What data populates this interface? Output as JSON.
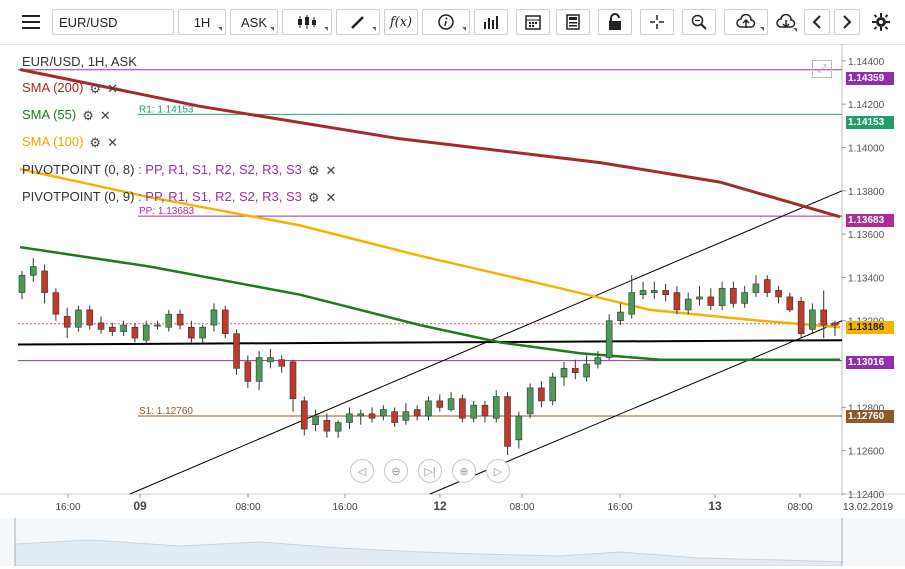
{
  "toolbar": {
    "symbol": "EUR/USD",
    "timeframe": "1H",
    "price_side": "ASK",
    "icons": [
      "menu-icon",
      "candlestick-chart-icon",
      "drawing-pencil-icon",
      "function-icon",
      "info-icon",
      "bar-chart-icon",
      "calendar-icon",
      "calculator-icon",
      "lock-icon",
      "crosshair-icon",
      "zoom-icon",
      "cloud-upload-icon",
      "cloud-download-icon",
      "chevron-left-icon",
      "chevron-right-icon",
      "gear-icon"
    ]
  },
  "legend": {
    "title": "EUR/USD, 1H, ASK",
    "sma200": "SMA (200)",
    "sma55": "SMA (55)",
    "sma100": "SMA (100)",
    "pivot1_name": "PIVOTPOINT (0, 8)",
    "pivot2_name": "PIVOTPOINT (0, 9)",
    "pivot_levels": [
      ": PP",
      "R1",
      "R2",
      "S2",
      "R3",
      "S3"
    ],
    "pivot_levels_full": ": PP, R1, S1, R2, S2, R3, S3",
    "colors": {
      "sma200": "#a52a2a",
      "sma55": "#1e7b1e",
      "sma100": "#f5b301",
      "pivot_pp": "#a0309a"
    }
  },
  "level_labels": {
    "r1": "R1: 1.14153",
    "pp": "PP: 1.13683",
    "s1": "S1: 1.12760"
  },
  "price_tags": {
    "top": "1.14359",
    "r1": "1.14153",
    "pp": "1.13683",
    "current": "1.13186",
    "sma55": "1.13016",
    "s1": "1.12760"
  },
  "chart_data": {
    "type": "candlestick",
    "symbol": "EUR/USD",
    "interval": "1H",
    "y_ticks": [
      "1.14400",
      "1.14200",
      "1.14000",
      "1.13800",
      "1.13600",
      "1.13400",
      "1.13200",
      "1.12800",
      "1.12600",
      "1.12400"
    ],
    "ylim": [
      1.124,
      1.1445
    ],
    "x_labels": [
      "16:00",
      "09",
      "08:00",
      "16:00",
      "12",
      "08:00",
      "16:00",
      "13",
      "08:00",
      "13.02.2019"
    ],
    "horizontal_levels": [
      {
        "name": "R1",
        "value": 1.14153,
        "color": "#2aa07a"
      },
      {
        "name": "PP",
        "value": 1.13683,
        "color": "#a0309a"
      },
      {
        "name": "S1",
        "value": 1.1276,
        "color": "#8b5a2b"
      },
      {
        "name": "top",
        "value": 1.14359,
        "color": "#a0309a"
      },
      {
        "name": "lower",
        "value": 1.13016,
        "color": "#a0309a"
      }
    ],
    "candles": [
      {
        "o": 1.1333,
        "c": 1.1341,
        "h": 1.1343,
        "l": 1.133
      },
      {
        "o": 1.1341,
        "c": 1.1345,
        "h": 1.1349,
        "l": 1.1338
      },
      {
        "o": 1.1343,
        "c": 1.1333,
        "h": 1.1346,
        "l": 1.1328
      },
      {
        "o": 1.1333,
        "c": 1.1323,
        "h": 1.1335,
        "l": 1.132
      },
      {
        "o": 1.1322,
        "c": 1.1317,
        "h": 1.1326,
        "l": 1.1312
      },
      {
        "o": 1.1317,
        "c": 1.1325,
        "h": 1.1327,
        "l": 1.1315
      },
      {
        "o": 1.1325,
        "c": 1.1318,
        "h": 1.1327,
        "l": 1.1316
      },
      {
        "o": 1.1319,
        "c": 1.1316,
        "h": 1.1322,
        "l": 1.1314
      },
      {
        "o": 1.1317,
        "c": 1.1315,
        "h": 1.1319,
        "l": 1.1313
      },
      {
        "o": 1.1315,
        "c": 1.1318,
        "h": 1.132,
        "l": 1.1313
      },
      {
        "o": 1.1317,
        "c": 1.1312,
        "h": 1.1319,
        "l": 1.131
      },
      {
        "o": 1.1311,
        "c": 1.1318,
        "h": 1.132,
        "l": 1.1309
      },
      {
        "o": 1.1318,
        "c": 1.1318,
        "h": 1.132,
        "l": 1.1316
      },
      {
        "o": 1.1317,
        "c": 1.1323,
        "h": 1.1325,
        "l": 1.1315
      },
      {
        "o": 1.1323,
        "c": 1.1318,
        "h": 1.1325,
        "l": 1.1316
      },
      {
        "o": 1.1317,
        "c": 1.1312,
        "h": 1.132,
        "l": 1.131
      },
      {
        "o": 1.1312,
        "c": 1.1317,
        "h": 1.1318,
        "l": 1.131
      },
      {
        "o": 1.1318,
        "c": 1.1325,
        "h": 1.1328,
        "l": 1.1315
      },
      {
        "o": 1.1325,
        "c": 1.1314,
        "h": 1.1327,
        "l": 1.1312
      },
      {
        "o": 1.1314,
        "c": 1.1298,
        "h": 1.1316,
        "l": 1.1295
      },
      {
        "o": 1.1301,
        "c": 1.1292,
        "h": 1.1304,
        "l": 1.1289
      },
      {
        "o": 1.1292,
        "c": 1.1303,
        "h": 1.1306,
        "l": 1.1288
      },
      {
        "o": 1.1301,
        "c": 1.1303,
        "h": 1.1307,
        "l": 1.1298
      },
      {
        "o": 1.1302,
        "c": 1.1299,
        "h": 1.1304,
        "l": 1.1296
      },
      {
        "o": 1.1301,
        "c": 1.1284,
        "h": 1.1302,
        "l": 1.1278
      },
      {
        "o": 1.1283,
        "c": 1.127,
        "h": 1.1285,
        "l": 1.1267
      },
      {
        "o": 1.1272,
        "c": 1.1276,
        "h": 1.1279,
        "l": 1.1269
      },
      {
        "o": 1.1274,
        "c": 1.1269,
        "h": 1.1277,
        "l": 1.1266
      },
      {
        "o": 1.1269,
        "c": 1.1273,
        "h": 1.1274,
        "l": 1.1266
      },
      {
        "o": 1.1273,
        "c": 1.1277,
        "h": 1.128,
        "l": 1.127
      },
      {
        "o": 1.1276,
        "c": 1.1277,
        "h": 1.1279,
        "l": 1.1272
      },
      {
        "o": 1.1277,
        "c": 1.1275,
        "h": 1.128,
        "l": 1.1273
      },
      {
        "o": 1.1276,
        "c": 1.1279,
        "h": 1.1281,
        "l": 1.1274
      },
      {
        "o": 1.1278,
        "c": 1.1273,
        "h": 1.128,
        "l": 1.1271
      },
      {
        "o": 1.1274,
        "c": 1.1278,
        "h": 1.1282,
        "l": 1.1272
      },
      {
        "o": 1.1279,
        "c": 1.1276,
        "h": 1.1281,
        "l": 1.1274
      },
      {
        "o": 1.1276,
        "c": 1.1283,
        "h": 1.1285,
        "l": 1.1274
      },
      {
        "o": 1.1283,
        "c": 1.128,
        "h": 1.1286,
        "l": 1.1278
      },
      {
        "o": 1.1279,
        "c": 1.1284,
        "h": 1.1287,
        "l": 1.1278
      },
      {
        "o": 1.1284,
        "c": 1.1275,
        "h": 1.1286,
        "l": 1.1273
      },
      {
        "o": 1.1275,
        "c": 1.1281,
        "h": 1.1283,
        "l": 1.1273
      },
      {
        "o": 1.1281,
        "c": 1.1276,
        "h": 1.1283,
        "l": 1.1273
      },
      {
        "o": 1.1275,
        "c": 1.1285,
        "h": 1.1288,
        "l": 1.1273
      },
      {
        "o": 1.1285,
        "c": 1.1262,
        "h": 1.1287,
        "l": 1.1258
      },
      {
        "o": 1.1265,
        "c": 1.1276,
        "h": 1.1278,
        "l": 1.1261
      },
      {
        "o": 1.1277,
        "c": 1.1289,
        "h": 1.1291,
        "l": 1.1275
      },
      {
        "o": 1.1289,
        "c": 1.1283,
        "h": 1.1292,
        "l": 1.128
      },
      {
        "o": 1.1283,
        "c": 1.1294,
        "h": 1.1296,
        "l": 1.1281
      },
      {
        "o": 1.1294,
        "c": 1.1298,
        "h": 1.1301,
        "l": 1.129
      },
      {
        "o": 1.1298,
        "c": 1.1296,
        "h": 1.1302,
        "l": 1.1293
      },
      {
        "o": 1.1294,
        "c": 1.13,
        "h": 1.1304,
        "l": 1.1292
      },
      {
        "o": 1.13,
        "c": 1.1303,
        "h": 1.1306,
        "l": 1.1298
      },
      {
        "o": 1.1303,
        "c": 1.132,
        "h": 1.1323,
        "l": 1.1302
      },
      {
        "o": 1.132,
        "c": 1.1324,
        "h": 1.1328,
        "l": 1.1318
      },
      {
        "o": 1.1323,
        "c": 1.1333,
        "h": 1.1341,
        "l": 1.1321
      },
      {
        "o": 1.1332,
        "c": 1.1334,
        "h": 1.1338,
        "l": 1.133
      },
      {
        "o": 1.1333,
        "c": 1.1334,
        "h": 1.1338,
        "l": 1.133
      },
      {
        "o": 1.1334,
        "c": 1.1332,
        "h": 1.1337,
        "l": 1.1329
      },
      {
        "o": 1.1333,
        "c": 1.1325,
        "h": 1.1336,
        "l": 1.1323
      },
      {
        "o": 1.1325,
        "c": 1.133,
        "h": 1.1333,
        "l": 1.1323
      },
      {
        "o": 1.133,
        "c": 1.1331,
        "h": 1.1336,
        "l": 1.1327
      },
      {
        "o": 1.1331,
        "c": 1.1327,
        "h": 1.1335,
        "l": 1.1325
      },
      {
        "o": 1.1327,
        "c": 1.1335,
        "h": 1.1338,
        "l": 1.1325
      },
      {
        "o": 1.1335,
        "c": 1.1328,
        "h": 1.1338,
        "l": 1.1326
      },
      {
        "o": 1.1328,
        "c": 1.1333,
        "h": 1.1336,
        "l": 1.1326
      },
      {
        "o": 1.1333,
        "c": 1.1337,
        "h": 1.1341,
        "l": 1.1331
      },
      {
        "o": 1.1339,
        "c": 1.1333,
        "h": 1.1341,
        "l": 1.1331
      },
      {
        "o": 1.1334,
        "c": 1.1331,
        "h": 1.1336,
        "l": 1.1328
      },
      {
        "o": 1.1331,
        "c": 1.1325,
        "h": 1.1333,
        "l": 1.1324
      },
      {
        "o": 1.1329,
        "c": 1.1314,
        "h": 1.1331,
        "l": 1.1312
      },
      {
        "o": 1.1316,
        "c": 1.1325,
        "h": 1.1328,
        "l": 1.1314
      },
      {
        "o": 1.1325,
        "c": 1.1318,
        "h": 1.1334,
        "l": 1.1312
      },
      {
        "o": 1.1319,
        "c": 1.1318,
        "h": 1.132,
        "l": 1.1313
      }
    ],
    "sma200_points": [
      [
        20,
        1.1436
      ],
      [
        200,
        1.1419
      ],
      [
        400,
        1.1404
      ],
      [
        600,
        1.1393
      ],
      [
        720,
        1.1384
      ],
      [
        840,
        1.1368
      ]
    ],
    "sma100_points": [
      [
        20,
        1.139
      ],
      [
        150,
        1.1377
      ],
      [
        300,
        1.1364
      ],
      [
        420,
        1.135
      ],
      [
        560,
        1.1335
      ],
      [
        650,
        1.1325
      ],
      [
        760,
        1.132
      ],
      [
        840,
        1.1317
      ]
    ],
    "sma55_points": [
      [
        20,
        1.1354
      ],
      [
        150,
        1.1345
      ],
      [
        300,
        1.1332
      ],
      [
        420,
        1.1318
      ],
      [
        500,
        1.131
      ],
      [
        580,
        1.1305
      ],
      [
        660,
        1.1302
      ],
      [
        760,
        1.1302
      ],
      [
        840,
        1.1302
      ]
    ],
    "trend_lines": [
      {
        "color": "#000",
        "p1": [
          130,
          1.124
        ],
        "p2": [
          842,
          1.138
        ]
      },
      {
        "color": "#000",
        "p1": [
          430,
          1.124
        ],
        "p2": [
          842,
          1.132
        ]
      },
      {
        "color": "#000",
        "p1": [
          18,
          1.1309
        ],
        "p2": [
          842,
          1.1311
        ],
        "bold": true
      }
    ]
  }
}
